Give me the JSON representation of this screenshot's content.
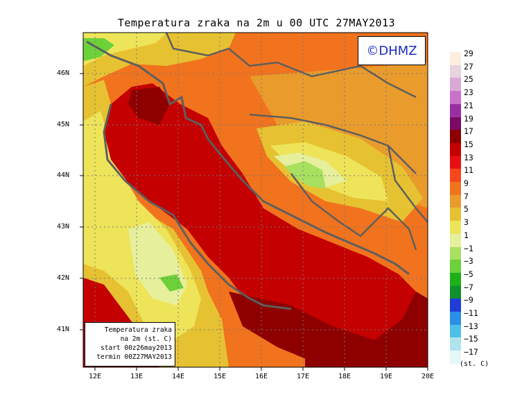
{
  "title": "Temperatura zraka na 2m u 00 UTC 27MAY2013",
  "copyright": "©DHMZ",
  "info_box": {
    "line1": "Temperatura zraka",
    "line2": "na 2m (st. C)",
    "line3": "start 00z26may2013",
    "line4": "termin 00Z27MAY2013"
  },
  "lat_labels": [
    "46N",
    "45N",
    "44N",
    "43N",
    "42N",
    "41N"
  ],
  "lon_labels": [
    "12E",
    "13E",
    "14E",
    "15E",
    "16E",
    "17E",
    "18E",
    "19E",
    "20E"
  ],
  "legend": {
    "labels": [
      "29",
      "27",
      "25",
      "23",
      "21",
      "19",
      "17",
      "15",
      "13",
      "11",
      "9",
      "7",
      "5",
      "3",
      "1",
      "−1",
      "−3",
      "−5",
      "−7",
      "−9",
      "−11",
      "−13",
      "−15",
      "−17"
    ],
    "colors": [
      "#fdeee0",
      "#e8d3de",
      "#d9a9d6",
      "#c873c9",
      "#9a2fa4",
      "#7a0a63",
      "#8e0000",
      "#c40000",
      "#e80f14",
      "#f5461c",
      "#f1731e",
      "#e99b2c",
      "#e6c232",
      "#eee45a",
      "#e6ef9c",
      "#a8e060",
      "#6dd13a",
      "#1db019",
      "#0f8f2d",
      "#1e3dd8",
      "#2a8fe6",
      "#4dc0e8",
      "#b0e3ee",
      "#e6f7f7"
    ],
    "unit": "(st. C)"
  },
  "colors": {
    "coast": "#5e5e5e",
    "sea_warm": "#c40000",
    "sea_deep": "#8e0000",
    "land_mild": "#f1731e",
    "land_cool": "#eee45a"
  }
}
